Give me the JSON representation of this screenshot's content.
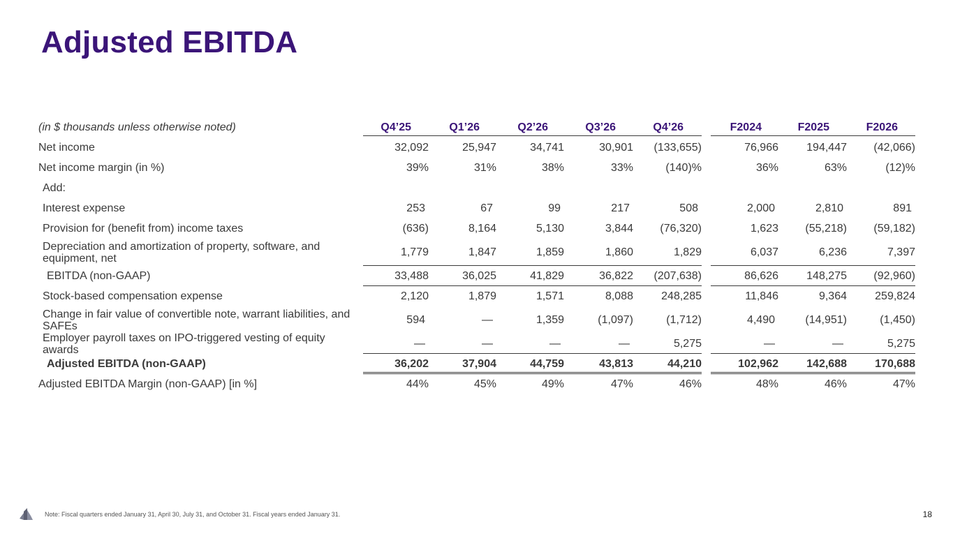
{
  "title": "Adjusted EBITDA",
  "header": {
    "label": "(in $ thousands unless otherwise noted)",
    "columns": [
      "Q4’25",
      "Q1’26",
      "Q2’26",
      "Q3’26",
      "Q4’26",
      "F2024",
      "F2025",
      "F2026"
    ]
  },
  "rows": [
    {
      "label": "Net income",
      "values": [
        "32,092",
        "25,947",
        "34,741",
        "30,901",
        "(133,655)",
        "76,966",
        "194,447",
        "(42,066)"
      ]
    },
    {
      "label": "Net income margin (in %)",
      "values": [
        "39%",
        "31%",
        "38%",
        "33%",
        "(140)%",
        "36%",
        "63%",
        "(12)%"
      ]
    },
    {
      "label": "Add:",
      "values": [
        "",
        "",
        "",
        "",
        "",
        "",
        "",
        ""
      ]
    },
    {
      "label": "Interest expense",
      "values": [
        "253",
        "67",
        "99",
        "217",
        "508",
        "2,000",
        "2,810",
        "891"
      ]
    },
    {
      "label": "Provision for (benefit from) income taxes",
      "values": [
        "(636)",
        "8,164",
        "5,130",
        "3,844",
        "(76,320)",
        "1,623",
        "(55,218)",
        "(59,182)"
      ]
    },
    {
      "label": "Depreciation and amortization of property, software, and equipment, net",
      "values": [
        "1,779",
        "1,847",
        "1,859",
        "1,860",
        "1,829",
        "6,037",
        "6,236",
        "7,397"
      ]
    },
    {
      "label": "EBITDA (non-GAAP)",
      "values": [
        "33,488",
        "36,025",
        "41,829",
        "36,822",
        "(207,638)",
        "86,626",
        "148,275",
        "(92,960)"
      ]
    },
    {
      "label": "Stock-based compensation expense",
      "values": [
        "2,120",
        "1,879",
        "1,571",
        "8,088",
        "248,285",
        "11,846",
        "9,364",
        "259,824"
      ]
    },
    {
      "label": "Change in fair value of convertible note, warrant liabilities, and SAFEs",
      "values": [
        "594",
        "—",
        "1,359",
        "(1,097)",
        "(1,712)",
        "4,490",
        "(14,951)",
        "(1,450)"
      ]
    },
    {
      "label": "Employer payroll taxes on IPO-triggered vesting of equity awards",
      "values": [
        "—",
        "—",
        "—",
        "—",
        "5,275",
        "—",
        "—",
        "5,275"
      ]
    },
    {
      "label": "Adjusted EBITDA (non-GAAP)",
      "values": [
        "36,202",
        "37,904",
        "44,759",
        "43,813",
        "44,210",
        "102,962",
        "142,688",
        "170,688"
      ]
    },
    {
      "label": "Adjusted EBITDA Margin (non-GAAP) [in %]",
      "values": [
        "44%",
        "45%",
        "49%",
        "47%",
        "46%",
        "48%",
        "46%",
        "47%"
      ]
    }
  ],
  "footnote": "Note: Fiscal quarters ended January 31, April 30, July 31, and October 31. Fiscal years ended January 31.",
  "page_number": "18",
  "colors": {
    "title": "#3b1578",
    "text": "#3a3a3a"
  },
  "logo_icon": "company-logo-icon"
}
